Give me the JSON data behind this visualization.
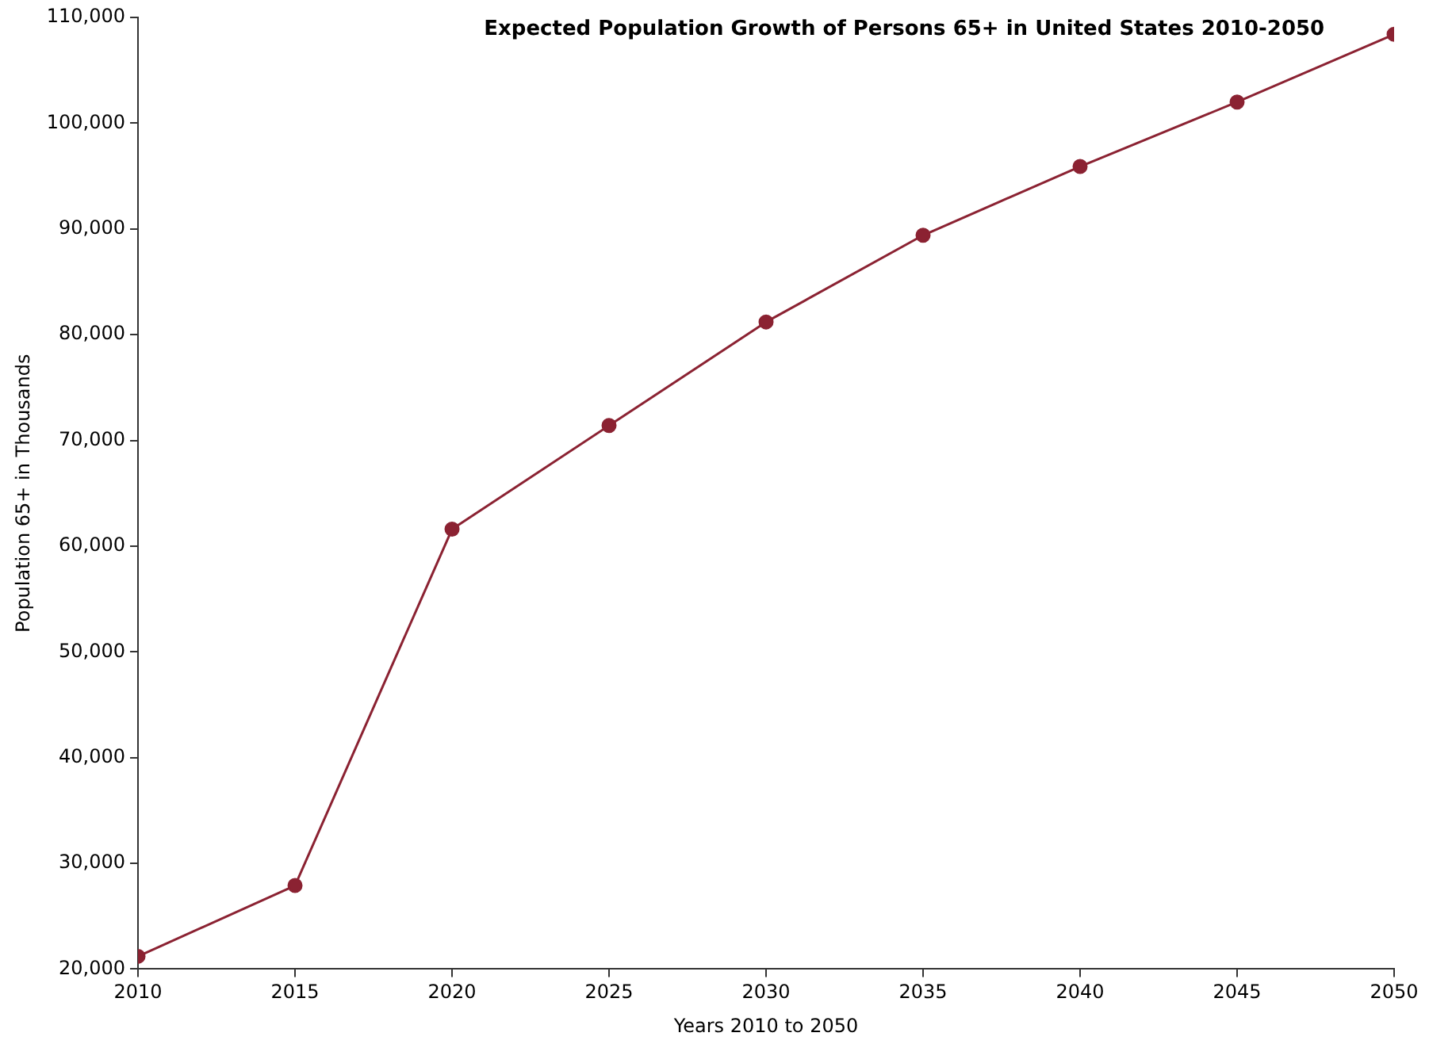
{
  "chart_data": {
    "type": "line",
    "title": "Expected Population Growth of Persons 65+ in United States 2010-2050",
    "xlabel": "Years 2010 to 2050",
    "ylabel": "Population 65+ in Thousands",
    "x": [
      2010,
      2015,
      2020,
      2025,
      2030,
      2035,
      2040,
      2045,
      2050
    ],
    "series": [
      {
        "color": "#8b2232",
        "values": [
          21200,
          27900,
          61600,
          71400,
          81200,
          89400,
          95900,
          102000,
          108400
        ]
      }
    ],
    "xlim": [
      2010,
      2050
    ],
    "xticks": [
      2010,
      2015,
      2020,
      2025,
      2030,
      2035,
      2040,
      2045,
      2050
    ],
    "ylim": [
      20000,
      110000
    ],
    "yticks": [
      {
        "value": 20000,
        "label": "20,000"
      },
      {
        "value": 30000,
        "label": "30,000"
      },
      {
        "value": 40000,
        "label": "40,000"
      },
      {
        "value": 50000,
        "label": "50,000"
      },
      {
        "value": 60000,
        "label": "60,000"
      },
      {
        "value": 70000,
        "label": "70,000"
      },
      {
        "value": 80000,
        "label": "80,000"
      },
      {
        "value": 90000,
        "label": "90,000"
      },
      {
        "value": 100000,
        "label": "100,000"
      },
      {
        "value": 110000,
        "label": "110,000"
      }
    ],
    "grid": false,
    "legend": false,
    "marker": "circle",
    "line_style": "solid"
  }
}
